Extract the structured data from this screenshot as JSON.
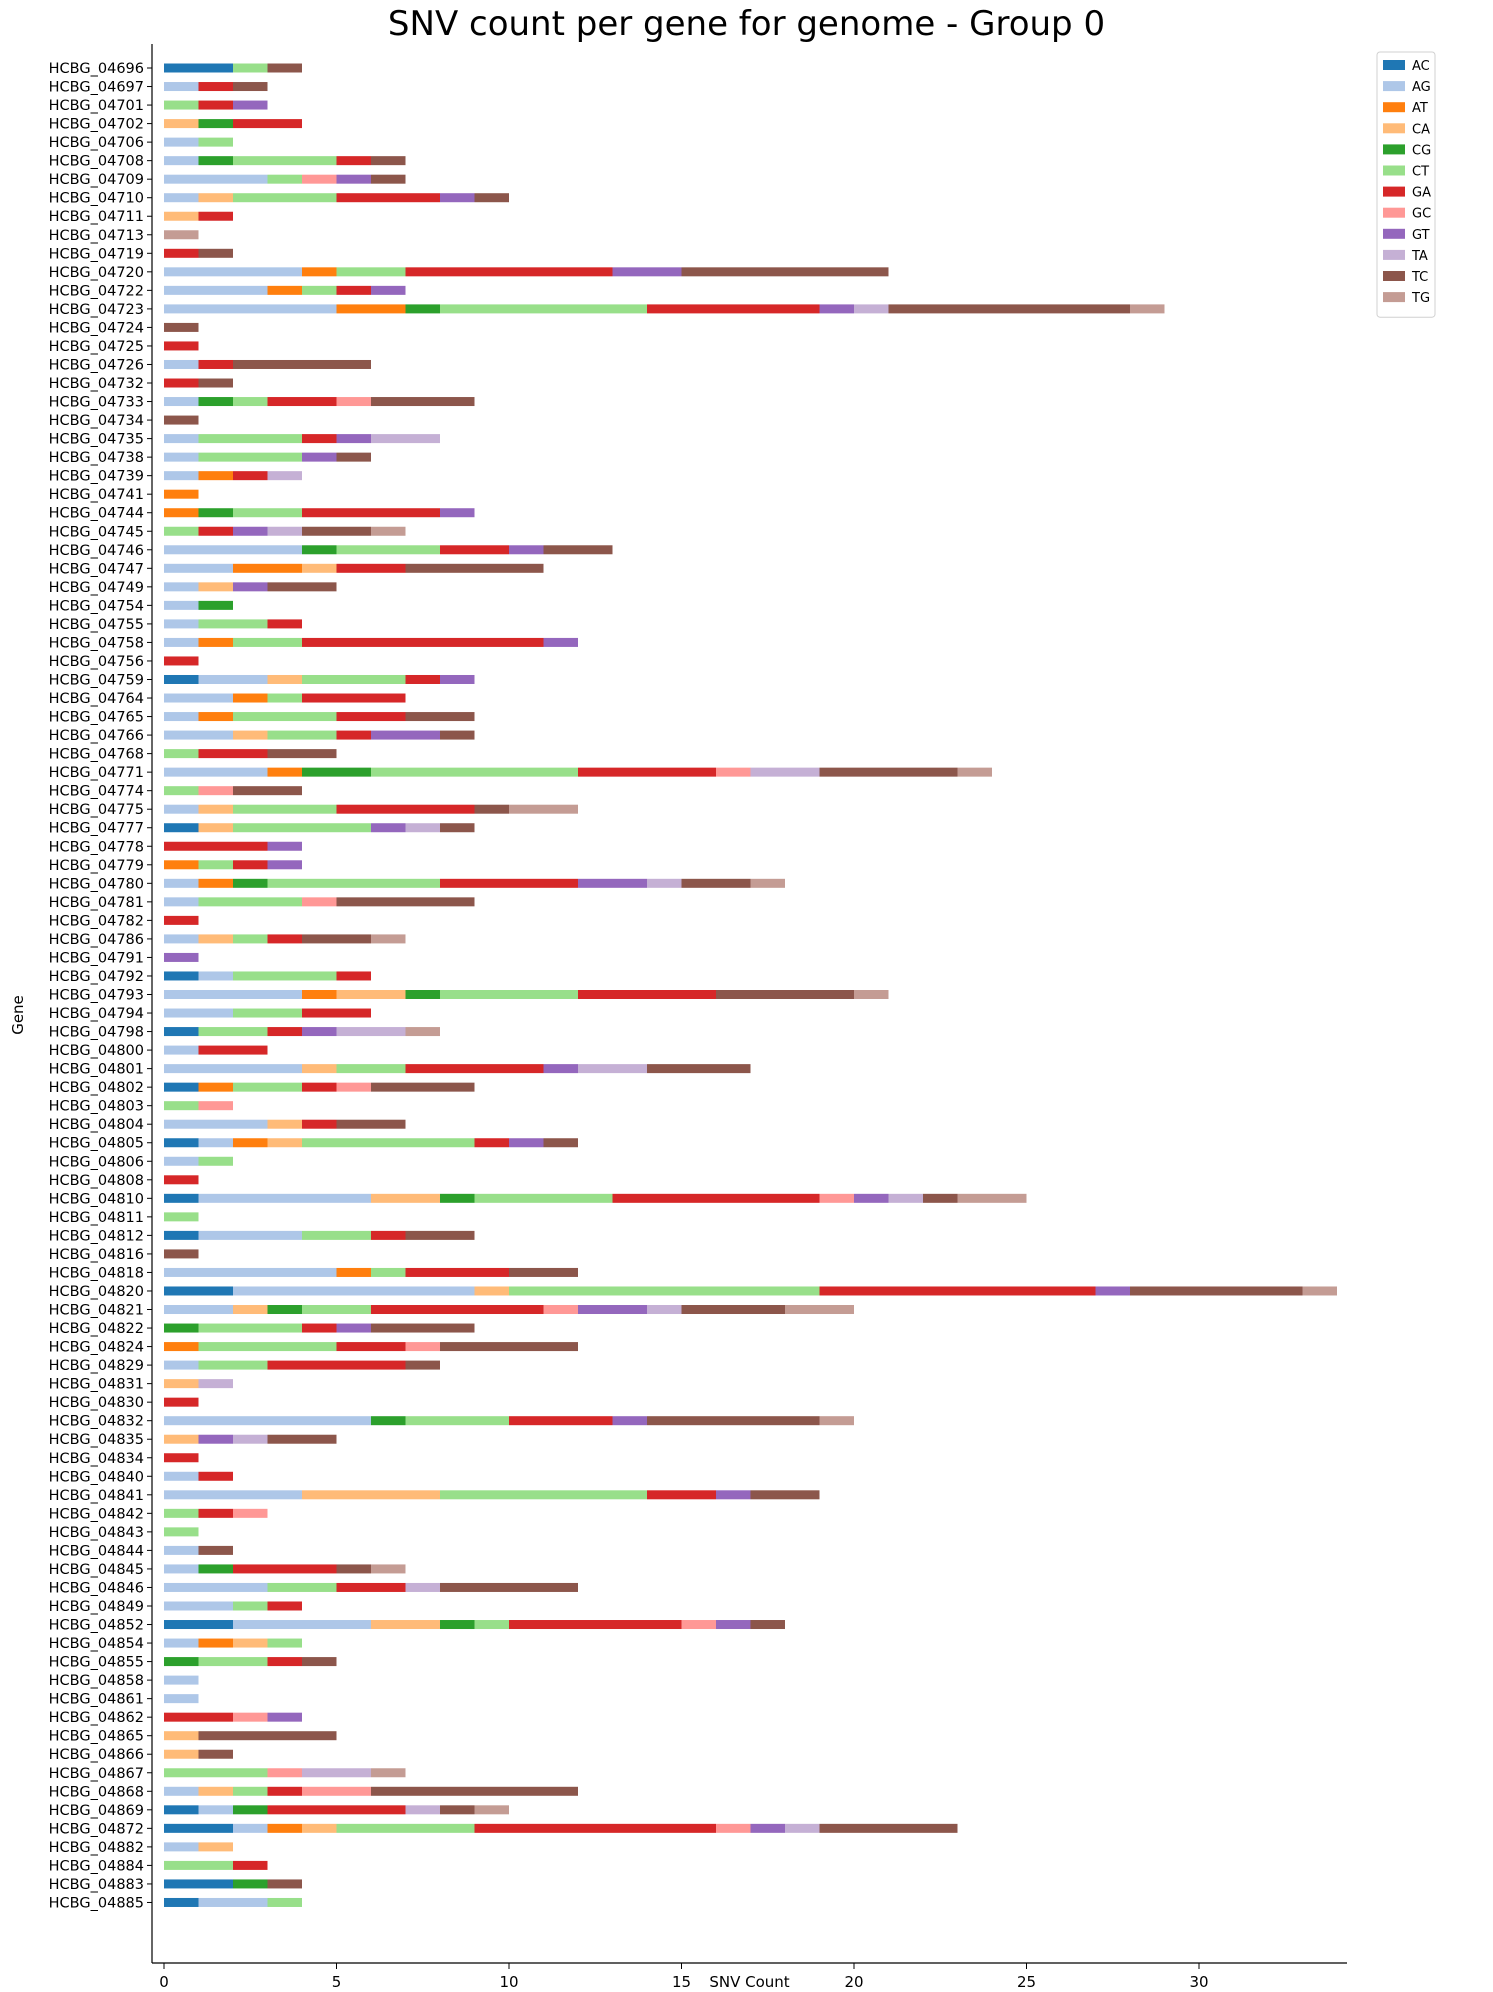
{
  "chart_data": {
    "type": "bar",
    "orientation": "horizontal",
    "stacked": true,
    "title": "SNV count per gene for genome - Group 0",
    "xlabel": "SNV Count",
    "ylabel": "Gene",
    "xlim": [
      0,
      34.4
    ],
    "xticks": [
      "0",
      "5",
      "10",
      "15",
      "20",
      "25",
      "30"
    ],
    "grid": false,
    "legend_position": "top-right outside",
    "categories": [
      "HCBG_04696",
      "HCBG_04697",
      "HCBG_04701",
      "HCBG_04702",
      "HCBG_04706",
      "HCBG_04708",
      "HCBG_04709",
      "HCBG_04710",
      "HCBG_04711",
      "HCBG_04713",
      "HCBG_04719",
      "HCBG_04720",
      "HCBG_04722",
      "HCBG_04723",
      "HCBG_04724",
      "HCBG_04725",
      "HCBG_04726",
      "HCBG_04732",
      "HCBG_04733",
      "HCBG_04734",
      "HCBG_04735",
      "HCBG_04738",
      "HCBG_04739",
      "HCBG_04741",
      "HCBG_04744",
      "HCBG_04745",
      "HCBG_04746",
      "HCBG_04747",
      "HCBG_04749",
      "HCBG_04754",
      "HCBG_04755",
      "HCBG_04758",
      "HCBG_04756",
      "HCBG_04759",
      "HCBG_04764",
      "HCBG_04765",
      "HCBG_04766",
      "HCBG_04768",
      "HCBG_04771",
      "HCBG_04774",
      "HCBG_04775",
      "HCBG_04777",
      "HCBG_04778",
      "HCBG_04779",
      "HCBG_04780",
      "HCBG_04781",
      "HCBG_04782",
      "HCBG_04786",
      "HCBG_04791",
      "HCBG_04792",
      "HCBG_04793",
      "HCBG_04794",
      "HCBG_04798",
      "HCBG_04800",
      "HCBG_04801",
      "HCBG_04802",
      "HCBG_04803",
      "HCBG_04804",
      "HCBG_04805",
      "HCBG_04806",
      "HCBG_04808",
      "HCBG_04810",
      "HCBG_04811",
      "HCBG_04812",
      "HCBG_04816",
      "HCBG_04818",
      "HCBG_04820",
      "HCBG_04821",
      "HCBG_04822",
      "HCBG_04824",
      "HCBG_04829",
      "HCBG_04831",
      "HCBG_04830",
      "HCBG_04832",
      "HCBG_04835",
      "HCBG_04834",
      "HCBG_04840",
      "HCBG_04841",
      "HCBG_04842",
      "HCBG_04843",
      "HCBG_04844",
      "HCBG_04845",
      "HCBG_04846",
      "HCBG_04849",
      "HCBG_04852",
      "HCBG_04854",
      "HCBG_04855",
      "HCBG_04858",
      "HCBG_04861",
      "HCBG_04862",
      "HCBG_04865",
      "HCBG_04866",
      "HCBG_04867",
      "HCBG_04868",
      "HCBG_04869",
      "HCBG_04872",
      "HCBG_04882",
      "HCBG_04884",
      "HCBG_04883",
      "HCBG_04885"
    ],
    "series": [
      {
        "name": "AC",
        "color": "#1f77b4",
        "values": [
          2,
          0,
          0,
          0,
          0,
          0,
          0,
          0,
          0,
          0,
          0,
          0,
          0,
          0,
          0,
          0,
          0,
          0,
          0,
          0,
          0,
          0,
          0,
          0,
          0,
          0,
          0,
          0,
          0,
          0,
          0,
          0,
          0,
          1,
          0,
          0,
          0,
          0,
          0,
          0,
          0,
          1,
          0,
          0,
          0,
          0,
          0,
          0,
          0,
          1,
          0,
          0,
          1,
          0,
          0,
          1,
          0,
          0,
          1,
          0,
          0,
          1,
          0,
          1,
          0,
          0,
          2,
          0,
          0,
          0,
          0,
          0,
          0,
          0,
          0,
          0,
          0,
          0,
          0,
          0,
          0,
          0,
          0,
          0,
          2,
          0,
          0,
          0,
          0,
          0,
          0,
          0,
          0,
          0,
          1,
          2,
          0,
          0,
          2,
          1
        ]
      },
      {
        "name": "AG",
        "color": "#aec7e8",
        "values": [
          0,
          1,
          0,
          0,
          1,
          1,
          3,
          1,
          0,
          0,
          0,
          4,
          3,
          5,
          0,
          0,
          1,
          0,
          1,
          0,
          1,
          1,
          1,
          0,
          0,
          0,
          4,
          2,
          1,
          1,
          1,
          1,
          0,
          2,
          2,
          1,
          2,
          0,
          3,
          0,
          1,
          0,
          0,
          0,
          1,
          1,
          0,
          1,
          0,
          1,
          4,
          2,
          0,
          1,
          4,
          0,
          0,
          3,
          1,
          1,
          0,
          5,
          0,
          3,
          0,
          5,
          7,
          2,
          0,
          0,
          1,
          0,
          0,
          6,
          0,
          0,
          1,
          4,
          0,
          0,
          1,
          1,
          3,
          2,
          4,
          1,
          0,
          1,
          1,
          0,
          0,
          0,
          0,
          1,
          1,
          1,
          1,
          0,
          0,
          2
        ]
      },
      {
        "name": "AT",
        "color": "#ff7f0e",
        "values": [
          0,
          0,
          0,
          0,
          0,
          0,
          0,
          0,
          0,
          0,
          0,
          1,
          1,
          2,
          0,
          0,
          0,
          0,
          0,
          0,
          0,
          0,
          1,
          1,
          1,
          0,
          0,
          2,
          0,
          0,
          0,
          1,
          0,
          0,
          1,
          1,
          0,
          0,
          1,
          0,
          0,
          0,
          0,
          1,
          1,
          0,
          0,
          0,
          0,
          0,
          1,
          0,
          0,
          0,
          0,
          1,
          0,
          0,
          1,
          0,
          0,
          0,
          0,
          0,
          0,
          1,
          0,
          0,
          0,
          1,
          0,
          0,
          0,
          0,
          0,
          0,
          0,
          0,
          0,
          0,
          0,
          0,
          0,
          0,
          0,
          1,
          0,
          0,
          0,
          0,
          0,
          0,
          0,
          0,
          0,
          1,
          0,
          0,
          0,
          0
        ]
      },
      {
        "name": "CA",
        "color": "#ffbb78",
        "values": [
          0,
          0,
          0,
          1,
          0,
          0,
          0,
          1,
          1,
          0,
          0,
          0,
          0,
          0,
          0,
          0,
          0,
          0,
          0,
          0,
          0,
          0,
          0,
          0,
          0,
          0,
          0,
          1,
          1,
          0,
          0,
          0,
          0,
          1,
          0,
          0,
          1,
          0,
          0,
          0,
          1,
          1,
          0,
          0,
          0,
          0,
          0,
          1,
          0,
          0,
          2,
          0,
          0,
          0,
          1,
          0,
          0,
          1,
          1,
          0,
          0,
          2,
          0,
          0,
          0,
          0,
          1,
          1,
          0,
          0,
          0,
          1,
          0,
          0,
          1,
          0,
          0,
          4,
          0,
          0,
          0,
          0,
          0,
          0,
          2,
          1,
          0,
          0,
          0,
          0,
          1,
          1,
          0,
          1,
          0,
          1,
          1,
          0,
          0,
          0
        ]
      },
      {
        "name": "CG",
        "color": "#2ca02c",
        "values": [
          0,
          0,
          0,
          1,
          0,
          1,
          0,
          0,
          0,
          0,
          0,
          0,
          0,
          1,
          0,
          0,
          0,
          0,
          1,
          0,
          0,
          0,
          0,
          0,
          1,
          0,
          1,
          0,
          0,
          1,
          0,
          0,
          0,
          0,
          0,
          0,
          0,
          0,
          2,
          0,
          0,
          0,
          0,
          0,
          1,
          0,
          0,
          0,
          0,
          0,
          1,
          0,
          0,
          0,
          0,
          0,
          0,
          0,
          0,
          0,
          0,
          1,
          0,
          0,
          0,
          0,
          0,
          1,
          1,
          0,
          0,
          0,
          0,
          1,
          0,
          0,
          0,
          0,
          0,
          0,
          0,
          1,
          0,
          0,
          1,
          0,
          1,
          0,
          0,
          0,
          0,
          0,
          0,
          0,
          1,
          0,
          0,
          0,
          1,
          0
        ]
      },
      {
        "name": "CT",
        "color": "#98df8a",
        "values": [
          1,
          0,
          1,
          0,
          1,
          3,
          1,
          3,
          0,
          0,
          0,
          2,
          1,
          6,
          0,
          0,
          0,
          0,
          1,
          0,
          3,
          3,
          0,
          0,
          2,
          1,
          3,
          0,
          0,
          0,
          2,
          2,
          0,
          3,
          1,
          3,
          2,
          1,
          6,
          1,
          3,
          4,
          0,
          1,
          5,
          3,
          0,
          1,
          0,
          3,
          4,
          2,
          2,
          0,
          2,
          2,
          1,
          0,
          5,
          1,
          0,
          4,
          1,
          2,
          0,
          1,
          9,
          2,
          3,
          4,
          2,
          0,
          0,
          3,
          0,
          0,
          0,
          6,
          1,
          1,
          0,
          0,
          2,
          1,
          1,
          1,
          2,
          0,
          0,
          0,
          0,
          0,
          3,
          1,
          0,
          4,
          0,
          2,
          0,
          1
        ]
      },
      {
        "name": "GA",
        "color": "#d62728",
        "values": [
          0,
          1,
          1,
          2,
          0,
          1,
          0,
          3,
          1,
          0,
          1,
          6,
          1,
          5,
          0,
          1,
          1,
          1,
          2,
          0,
          1,
          0,
          1,
          0,
          4,
          1,
          2,
          2,
          0,
          0,
          1,
          7,
          1,
          1,
          3,
          2,
          1,
          2,
          4,
          0,
          4,
          0,
          3,
          1,
          4,
          0,
          1,
          1,
          0,
          1,
          4,
          2,
          1,
          2,
          4,
          1,
          0,
          1,
          1,
          0,
          1,
          6,
          0,
          1,
          0,
          3,
          8,
          5,
          1,
          2,
          4,
          0,
          1,
          3,
          0,
          1,
          1,
          2,
          1,
          0,
          0,
          3,
          2,
          1,
          5,
          0,
          1,
          0,
          0,
          2,
          0,
          0,
          0,
          1,
          4,
          7,
          0,
          1,
          0,
          0
        ]
      },
      {
        "name": "GC",
        "color": "#ff9896",
        "values": [
          0,
          0,
          0,
          0,
          0,
          0,
          1,
          0,
          0,
          0,
          0,
          0,
          0,
          0,
          0,
          0,
          0,
          0,
          1,
          0,
          0,
          0,
          0,
          0,
          0,
          0,
          0,
          0,
          0,
          0,
          0,
          0,
          0,
          0,
          0,
          0,
          0,
          0,
          1,
          1,
          0,
          0,
          0,
          0,
          0,
          1,
          0,
          0,
          0,
          0,
          0,
          0,
          0,
          0,
          0,
          1,
          1,
          0,
          0,
          0,
          0,
          1,
          0,
          0,
          0,
          0,
          0,
          1,
          0,
          1,
          0,
          0,
          0,
          0,
          0,
          0,
          0,
          0,
          1,
          0,
          0,
          0,
          0,
          0,
          1,
          0,
          0,
          0,
          0,
          1,
          0,
          0,
          1,
          2,
          0,
          1,
          0,
          0,
          0,
          0
        ]
      },
      {
        "name": "GT",
        "color": "#9467bd",
        "values": [
          0,
          0,
          1,
          0,
          0,
          0,
          1,
          1,
          0,
          0,
          0,
          2,
          1,
          1,
          0,
          0,
          0,
          0,
          0,
          0,
          1,
          1,
          0,
          0,
          1,
          1,
          1,
          0,
          1,
          0,
          0,
          1,
          0,
          1,
          0,
          0,
          2,
          0,
          0,
          0,
          0,
          1,
          1,
          1,
          2,
          0,
          0,
          0,
          1,
          0,
          0,
          0,
          1,
          0,
          1,
          0,
          0,
          0,
          1,
          0,
          0,
          1,
          0,
          0,
          0,
          0,
          1,
          2,
          1,
          0,
          0,
          0,
          0,
          1,
          1,
          0,
          0,
          1,
          0,
          0,
          0,
          0,
          0,
          0,
          1,
          0,
          0,
          0,
          0,
          1,
          0,
          0,
          0,
          0,
          0,
          1,
          0,
          0,
          0,
          0
        ]
      },
      {
        "name": "TA",
        "color": "#c5b0d5",
        "values": [
          0,
          0,
          0,
          0,
          0,
          0,
          0,
          0,
          0,
          0,
          0,
          0,
          0,
          1,
          0,
          0,
          0,
          0,
          0,
          0,
          2,
          0,
          1,
          0,
          0,
          1,
          0,
          0,
          0,
          0,
          0,
          0,
          0,
          0,
          0,
          0,
          0,
          0,
          2,
          0,
          0,
          1,
          0,
          0,
          1,
          0,
          0,
          0,
          0,
          0,
          0,
          0,
          2,
          0,
          2,
          0,
          0,
          0,
          0,
          0,
          0,
          1,
          0,
          0,
          0,
          0,
          0,
          1,
          0,
          0,
          0,
          1,
          0,
          0,
          1,
          0,
          0,
          0,
          0,
          0,
          0,
          0,
          1,
          0,
          0,
          0,
          0,
          0,
          0,
          0,
          0,
          0,
          2,
          0,
          1,
          1,
          0,
          0,
          0,
          0
        ]
      },
      {
        "name": "TC",
        "color": "#8c564b",
        "values": [
          1,
          1,
          0,
          0,
          0,
          1,
          1,
          1,
          0,
          0,
          1,
          6,
          0,
          7,
          1,
          0,
          4,
          1,
          3,
          1,
          0,
          1,
          0,
          0,
          0,
          2,
          2,
          4,
          2,
          0,
          0,
          0,
          0,
          0,
          0,
          2,
          1,
          2,
          4,
          2,
          1,
          1,
          0,
          0,
          2,
          4,
          0,
          2,
          0,
          0,
          4,
          0,
          0,
          0,
          3,
          3,
          0,
          2,
          1,
          0,
          0,
          1,
          0,
          2,
          1,
          2,
          5,
          3,
          3,
          4,
          1,
          0,
          0,
          5,
          2,
          0,
          0,
          2,
          0,
          0,
          1,
          1,
          4,
          0,
          1,
          0,
          1,
          0,
          0,
          0,
          4,
          1,
          0,
          6,
          1,
          4,
          0,
          0,
          1,
          0
        ]
      },
      {
        "name": "TG",
        "color": "#c49c94",
        "values": [
          0,
          0,
          0,
          0,
          0,
          0,
          0,
          0,
          0,
          1,
          0,
          0,
          0,
          1,
          0,
          0,
          0,
          0,
          0,
          0,
          0,
          0,
          0,
          0,
          0,
          1,
          0,
          0,
          0,
          0,
          0,
          0,
          0,
          0,
          0,
          0,
          0,
          0,
          1,
          0,
          2,
          0,
          0,
          0,
          1,
          0,
          0,
          1,
          0,
          0,
          1,
          0,
          1,
          0,
          0,
          0,
          0,
          0,
          0,
          0,
          0,
          2,
          0,
          0,
          0,
          0,
          1,
          2,
          0,
          0,
          0,
          0,
          0,
          1,
          0,
          0,
          0,
          0,
          0,
          0,
          0,
          1,
          0,
          0,
          0,
          0,
          0,
          0,
          0,
          0,
          0,
          0,
          1,
          0,
          1,
          0,
          0,
          0,
          0,
          0
        ]
      }
    ]
  }
}
